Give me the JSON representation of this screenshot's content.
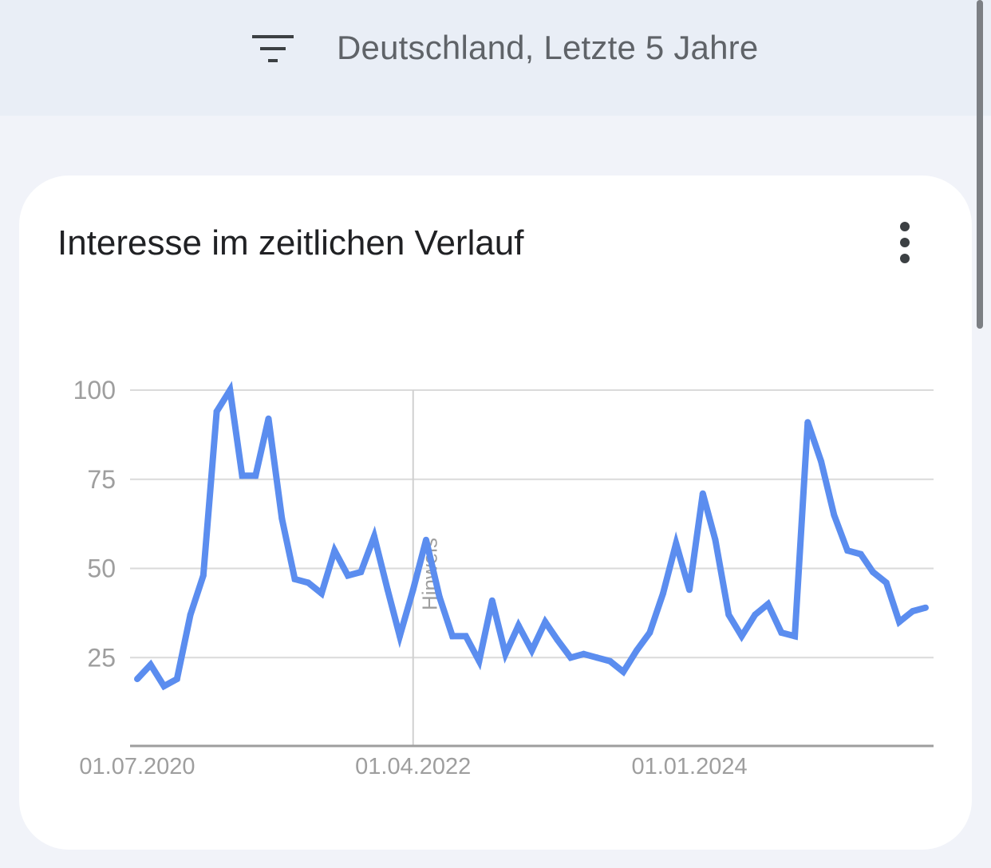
{
  "header": {
    "filter_icon": "filter-list-icon",
    "text": "Deutschland, Letzte 5 Jahre"
  },
  "card": {
    "title": "Interesse im zeitlichen Verlauf",
    "menu_icon": "more-vert-icon"
  },
  "chart_data": {
    "type": "line",
    "title": "Interesse im zeitlichen Verlauf",
    "xlabel": "",
    "ylabel": "",
    "ylim": [
      0,
      100
    ],
    "yticks": [
      100,
      75,
      50,
      25
    ],
    "xticks": [
      "01.07.2020",
      "01.04.2022",
      "01.01.2024"
    ],
    "grid": true,
    "annotation": {
      "label": "Hinweis",
      "x": "01.04.2022"
    },
    "color": "#5b8def",
    "x": [
      "2020-07-01",
      "2020-08-01",
      "2020-09-01",
      "2020-10-01",
      "2020-11-01",
      "2020-12-01",
      "2021-01-01",
      "2021-02-01",
      "2021-03-01",
      "2021-04-01",
      "2021-05-01",
      "2021-06-01",
      "2021-07-01",
      "2021-08-01",
      "2021-09-01",
      "2021-10-01",
      "2021-11-01",
      "2021-12-01",
      "2022-01-01",
      "2022-02-01",
      "2022-03-01",
      "2022-04-01",
      "2022-05-01",
      "2022-06-01",
      "2022-07-01",
      "2022-08-01",
      "2022-09-01",
      "2022-10-01",
      "2022-11-01",
      "2022-12-01",
      "2023-01-01",
      "2023-02-01",
      "2023-03-01",
      "2023-04-01",
      "2023-05-01",
      "2023-06-01",
      "2023-07-01",
      "2023-08-01",
      "2023-09-01",
      "2023-10-01",
      "2023-11-01",
      "2023-12-01",
      "2024-01-01",
      "2024-02-01",
      "2024-03-01",
      "2024-04-01",
      "2024-05-01",
      "2024-06-01",
      "2024-07-01",
      "2024-08-01",
      "2024-09-01",
      "2024-10-01",
      "2024-11-01",
      "2024-12-01",
      "2025-01-01",
      "2025-02-01",
      "2025-03-01",
      "2025-04-01",
      "2025-05-01",
      "2025-06-01",
      "2025-07-01"
    ],
    "values": [
      19,
      23,
      17,
      19,
      37,
      48,
      94,
      100,
      76,
      76,
      92,
      64,
      47,
      46,
      43,
      55,
      48,
      49,
      59,
      44,
      31,
      44,
      58,
      42,
      31,
      31,
      24,
      41,
      26,
      34,
      27,
      35,
      30,
      25,
      26,
      25,
      24,
      21,
      27,
      32,
      43,
      57,
      44,
      71,
      58,
      37,
      31,
      37,
      40,
      32,
      31,
      91,
      80,
      65,
      55,
      54,
      49,
      46,
      35,
      38,
      39
    ]
  }
}
